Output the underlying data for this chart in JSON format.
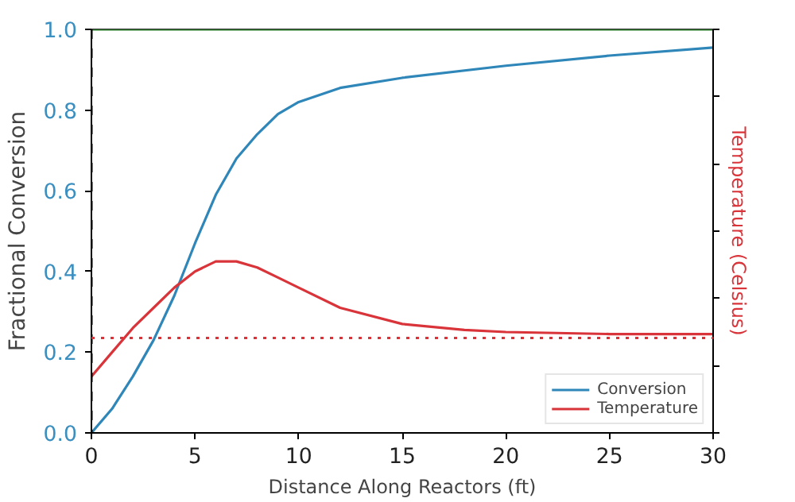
{
  "chart_data": {
    "type": "line",
    "xlabel": "Distance Along Reactors (ft)",
    "ylabel": "Fractional Conversion",
    "y2label": "Temperature (Celsius)",
    "xlim": [
      0,
      30
    ],
    "xticks": [
      0,
      5,
      10,
      15,
      20,
      25,
      30
    ],
    "ylim": [
      0,
      1.0
    ],
    "yticks": [
      {
        "value": 0,
        "label": "0.0"
      },
      0.2,
      0.4,
      0.6,
      0.8,
      {
        "value": 1,
        "label": "1.0"
      }
    ],
    "tick_labels": "xy",
    "grid": false,
    "legend": "bottom right",
    "line_style": "solid",
    "marker": "none",
    "series": [
      {
        "name": "Conversion",
        "color": "#2f86b8",
        "x": [
          0,
          1,
          2,
          3,
          4,
          5,
          6,
          7,
          8,
          9,
          10,
          12,
          15,
          20,
          25,
          30
        ],
        "values": [
          0,
          0.06,
          0.14,
          0.23,
          0.34,
          0.47,
          0.59,
          0.68,
          0.74,
          0.79,
          0.82,
          0.855,
          0.88,
          0.91,
          0.935,
          0.955
        ]
      },
      {
        "name": "Temperature",
        "color": "#d9343a",
        "x": [
          0,
          1,
          2,
          3,
          4,
          5,
          6,
          7,
          8,
          9,
          10,
          12,
          15,
          18,
          20,
          25,
          30
        ],
        "values": [
          0.14,
          0.2,
          0.26,
          0.31,
          0.36,
          0.4,
          0.425,
          0.425,
          0.41,
          0.385,
          0.36,
          0.31,
          0.27,
          0.255,
          0.25,
          0.245,
          0.245
        ]
      },
      {
        "color": "#2a7a2a",
        "x": [
          0,
          30
        ],
        "values": [
          1.0,
          1.0
        ]
      }
    ],
    "ref_lines": [
      {
        "axis": "x",
        "value": 0,
        "color": "#000000",
        "line_style": "dashed"
      },
      {
        "axis": "y",
        "value": 0.235,
        "color": "#d9343a",
        "line_style": "dotted"
      }
    ]
  }
}
